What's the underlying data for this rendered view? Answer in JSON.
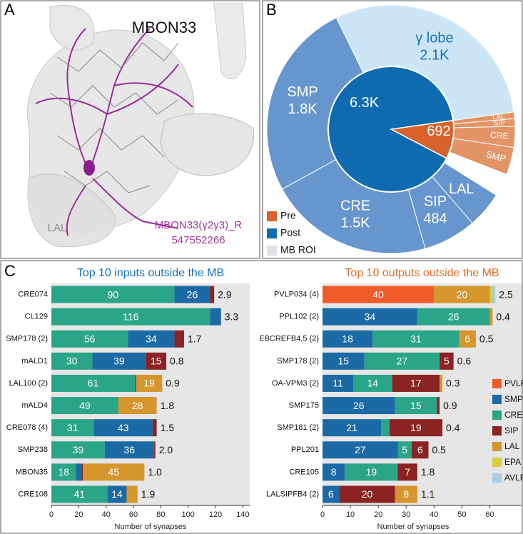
{
  "panel_labels": [
    "A",
    "B",
    "C"
  ],
  "render": {
    "title": "MBON33",
    "roi_label": "LAL",
    "neuron_name": "MBON33(γ2γ3)_R",
    "body_id": "547552266"
  },
  "chart_data": [
    {
      "type": "sunburst",
      "series": [
        {
          "name": "Pre",
          "color": "#d9622b",
          "value": 692,
          "value_label": "692",
          "children": {
            "categories": [
              "LAL",
              "SIP",
              "CRE",
              "SMP"
            ],
            "values": [
              60,
              70,
              190,
              250
            ],
            "color": "#e39466"
          }
        },
        {
          "name": "Post",
          "color": "#0f6bb0",
          "value": 6300,
          "value_label": "6.3K",
          "children": {
            "categories": [
              "LAL",
              "SIP",
              "CRE",
              "SMP",
              "γ lobe"
            ],
            "values": [
              330,
              484,
              1500,
              1800,
              2100
            ],
            "value_labels": [
              null,
              "484",
              "1.5K",
              "1.8K",
              "2.1K"
            ],
            "colors": [
              "#6796cf",
              "#6796cf",
              "#6796cf",
              "#6796cf",
              "#cde6f7"
            ]
          }
        }
      ],
      "roi_legend": {
        "name": "MB ROI",
        "color": "#e3dfe8"
      }
    },
    {
      "type": "stacked-bar-horizontal",
      "title": "Top 10 inputs outside the MB",
      "title_color": "#1a70b5",
      "x_label": "Number of synapses",
      "categories": [
        "CRE074",
        "CL129",
        "SMP178 (2)",
        "mALD1",
        "LAL100 (2)",
        "mALD4",
        "CRE078 (4)",
        "SMP238",
        "MBON35",
        "CRE108"
      ],
      "series": [
        {
          "name": "CRE",
          "color": "#2aa587",
          "values": [
            90,
            116,
            56,
            30,
            61,
            49,
            31,
            39,
            18,
            41
          ],
          "value_labels": [
            "90",
            "116",
            "56",
            "30",
            "61",
            "49",
            "31",
            "39",
            "18",
            "41"
          ]
        },
        {
          "name": "SMP",
          "color": "#1b6aa5",
          "values": [
            26,
            8,
            34,
            39,
            1,
            0,
            43,
            36,
            4,
            14
          ],
          "value_labels": [
            "26",
            null,
            "34",
            "39",
            null,
            null,
            "43",
            "36",
            null,
            "14"
          ]
        },
        {
          "name": "SIP",
          "color": "#8b2323",
          "values": [
            3,
            0,
            7,
            15,
            0,
            0,
            3,
            1,
            1,
            0
          ],
          "value_labels": [
            null,
            null,
            null,
            "15",
            null,
            null,
            null,
            null,
            null,
            null
          ]
        },
        {
          "name": "LAL",
          "color": "#d4962d",
          "values": [
            0,
            0,
            0,
            0,
            19,
            28,
            0,
            0,
            45,
            8
          ],
          "value_labels": [
            null,
            null,
            null,
            null,
            "19",
            "28",
            null,
            null,
            "45",
            null
          ]
        }
      ],
      "side_labels": [
        "2.9",
        "3.3",
        "1.7",
        "0.8",
        "0.9",
        "1.8",
        "1.5",
        "2.0",
        "1.0",
        "1.9"
      ],
      "xlim": [
        0,
        145
      ],
      "xticks": [
        0,
        20,
        40,
        60,
        80,
        100,
        120,
        140
      ],
      "legend": false
    },
    {
      "type": "stacked-bar-horizontal",
      "title": "Top 10 outputs outside the MB",
      "title_color": "#e06a2a",
      "x_label": "Number of synapses",
      "categories": [
        "PVLP034 (4)",
        "PPL102 (2)",
        "EBCREFB4,5 (2)",
        "SMP178 (2)",
        "OA-VPM3 (2)",
        "SMP175",
        "SMP181 (2)",
        "PPL201",
        "CRE105",
        "LALSIPFB4 (2)"
      ],
      "series": [
        {
          "name": "PVLP",
          "color": "#f15a29",
          "values": [
            40,
            0,
            0,
            0,
            0,
            0,
            0,
            0,
            0,
            0
          ],
          "value_labels": [
            "40",
            null,
            null,
            null,
            null,
            null,
            null,
            null,
            null,
            null
          ]
        },
        {
          "name": "SMP",
          "color": "#1b6aa5",
          "values": [
            0,
            34,
            18,
            15,
            11,
            26,
            21,
            27,
            8,
            6
          ],
          "value_labels": [
            null,
            "34",
            "18",
            "15",
            "11",
            "26",
            "21",
            "27",
            "8",
            "6"
          ]
        },
        {
          "name": "CRE",
          "color": "#2aa587",
          "values": [
            0,
            26,
            31,
            27,
            14,
            15,
            3,
            5,
            19,
            0
          ],
          "value_labels": [
            null,
            "26",
            "31",
            "27",
            "14",
            "15",
            null,
            "5",
            "19",
            null
          ]
        },
        {
          "name": "SIP",
          "color": "#8b2323",
          "values": [
            0,
            0,
            0,
            5,
            17,
            1,
            19,
            6,
            7,
            20
          ],
          "value_labels": [
            null,
            null,
            null,
            "5",
            "17",
            null,
            "19",
            "6",
            "7",
            "20"
          ]
        },
        {
          "name": "LAL",
          "color": "#d4962d",
          "values": [
            20,
            1,
            6,
            0,
            1,
            0,
            0,
            0,
            0,
            8
          ],
          "value_labels": [
            "20",
            null,
            "6",
            null,
            null,
            null,
            null,
            null,
            null,
            "8"
          ]
        },
        {
          "name": "EPA",
          "color": "#d7cf3b",
          "values": [
            1,
            0,
            0,
            0,
            0,
            0,
            0,
            0,
            0,
            0
          ],
          "value_labels": [
            null,
            null,
            null,
            null,
            null,
            null,
            null,
            null,
            null,
            null
          ]
        },
        {
          "name": "AVLP",
          "color": "#a9cbe6",
          "values": [
            1,
            0,
            0,
            0,
            0,
            0,
            0,
            0,
            0,
            0
          ],
          "value_labels": [
            null,
            null,
            null,
            null,
            null,
            null,
            null,
            null,
            null,
            null
          ]
        }
      ],
      "side_labels": [
        "2.5",
        "0.4",
        "0.5",
        "0.6",
        "0.3",
        "0.9",
        "0.4",
        "0.5",
        "1.8",
        "1.1"
      ],
      "xlim": [
        0,
        65
      ],
      "xticks": [
        0,
        10,
        20,
        30,
        40,
        50,
        60
      ],
      "legend": true
    }
  ]
}
